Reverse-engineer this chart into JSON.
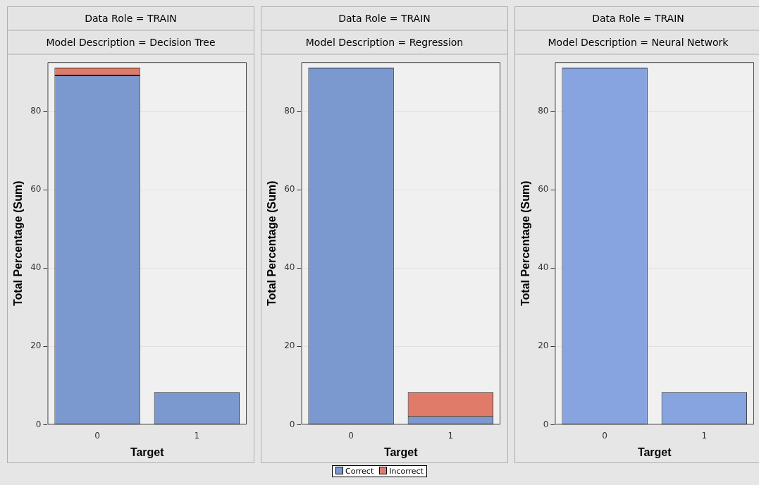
{
  "chart_data": [
    {
      "type": "bar",
      "title": "Data Role = TRAIN",
      "subtitle": "Model Description = Decision Tree",
      "xlabel": "Target",
      "ylabel": "Total Percentage (Sum)",
      "categories": [
        "0",
        "1"
      ],
      "stacked": true,
      "ylim": [
        0,
        92.6
      ],
      "yticks": [
        0,
        20,
        40,
        60,
        80
      ],
      "grid": "y",
      "legend": false,
      "series": [
        {
          "color": "#7b98cf",
          "values": [
            89.2,
            8.3
          ]
        },
        {
          "color": "#e07b6a",
          "values": [
            2.0,
            0
          ]
        }
      ]
    },
    {
      "type": "bar",
      "title": "Data Role = TRAIN",
      "subtitle": "Model Description = Regression",
      "xlabel": "Target",
      "ylabel": "Total Percentage (Sum)",
      "categories": [
        "0",
        "1"
      ],
      "stacked": true,
      "ylim": [
        0,
        92.6
      ],
      "yticks": [
        0,
        20,
        40,
        60,
        80
      ],
      "grid": "y",
      "legend": "bottom",
      "series": [
        {
          "name": "Correct",
          "color": "#7b98cf",
          "values": [
            91.2,
            2.0
          ]
        },
        {
          "name": "Incorrect",
          "color": "#e07b6a",
          "values": [
            0,
            6.3
          ]
        }
      ]
    },
    {
      "type": "bar",
      "title": "Data Role = TRAIN",
      "subtitle": "Model Description = Neural Network",
      "xlabel": "Target",
      "ylabel": "Total Percentage (Sum)",
      "categories": [
        "0",
        "1"
      ],
      "stacked": true,
      "ylim": [
        0,
        92.6
      ],
      "yticks": [
        0,
        20,
        40,
        60,
        80
      ],
      "grid": "y",
      "legend": false,
      "series": [
        {
          "color": "#87a3e0",
          "values": [
            91.2,
            8.3
          ]
        }
      ]
    }
  ]
}
